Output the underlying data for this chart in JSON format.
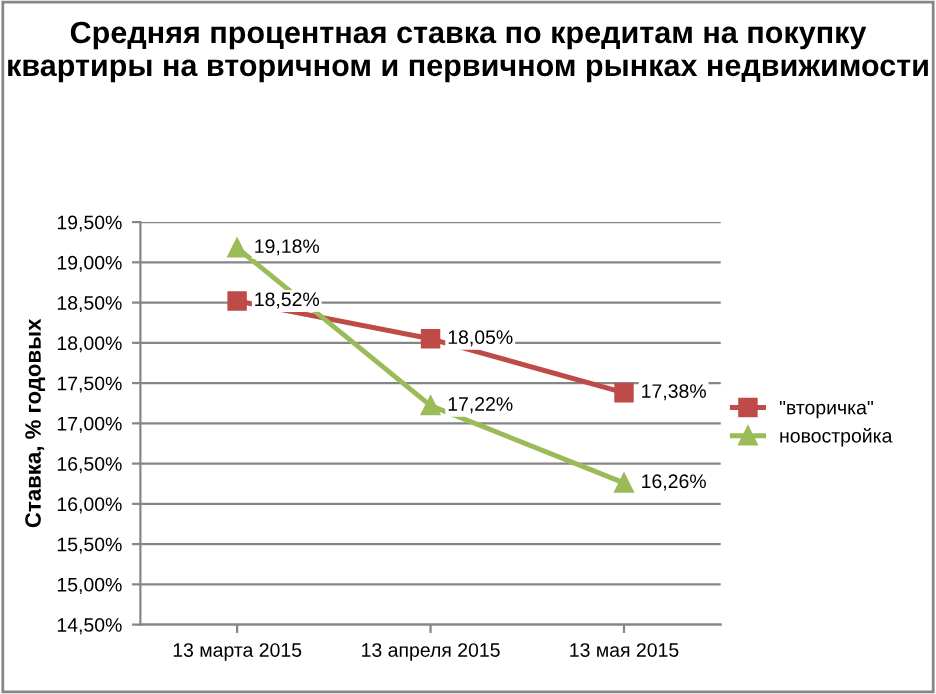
{
  "chart_data": {
    "type": "line",
    "title": "Средняя процентная ставка по кредитам на покупку квартиры на вторичном и первичном рынках недвижимости",
    "ylabel": "Ставка, % годовых",
    "categories": [
      "13 марта 2015",
      "13 апреля 2015",
      "13 мая 2015"
    ],
    "series": [
      {
        "name": "\"вторичка\"",
        "color": "#be4b48",
        "marker": "square",
        "values": [
          18.52,
          18.05,
          17.38
        ],
        "value_labels": [
          "18,52%",
          "18,05%",
          "17,38%"
        ]
      },
      {
        "name": "новостройка",
        "color": "#9bbb59",
        "marker": "triangle",
        "values": [
          19.18,
          17.22,
          16.26
        ],
        "value_labels": [
          "19,18%",
          "17,22%",
          "16,26%"
        ]
      }
    ],
    "ylim": [
      14.5,
      19.5
    ],
    "yticks": [
      {
        "value": 14.5,
        "label": "14,50%"
      },
      {
        "value": 15.0,
        "label": "15,00%"
      },
      {
        "value": 15.5,
        "label": "15,50%"
      },
      {
        "value": 16.0,
        "label": "16,00%"
      },
      {
        "value": 16.5,
        "label": "16,50%"
      },
      {
        "value": 17.0,
        "label": "17,00%"
      },
      {
        "value": 17.5,
        "label": "17,50%"
      },
      {
        "value": 18.0,
        "label": "18,00%"
      },
      {
        "value": 18.5,
        "label": "18,50%"
      },
      {
        "value": 19.0,
        "label": "19,00%"
      },
      {
        "value": 19.5,
        "label": "19,50%"
      }
    ],
    "grid": "y",
    "legend": "right",
    "line_style": "solid"
  }
}
